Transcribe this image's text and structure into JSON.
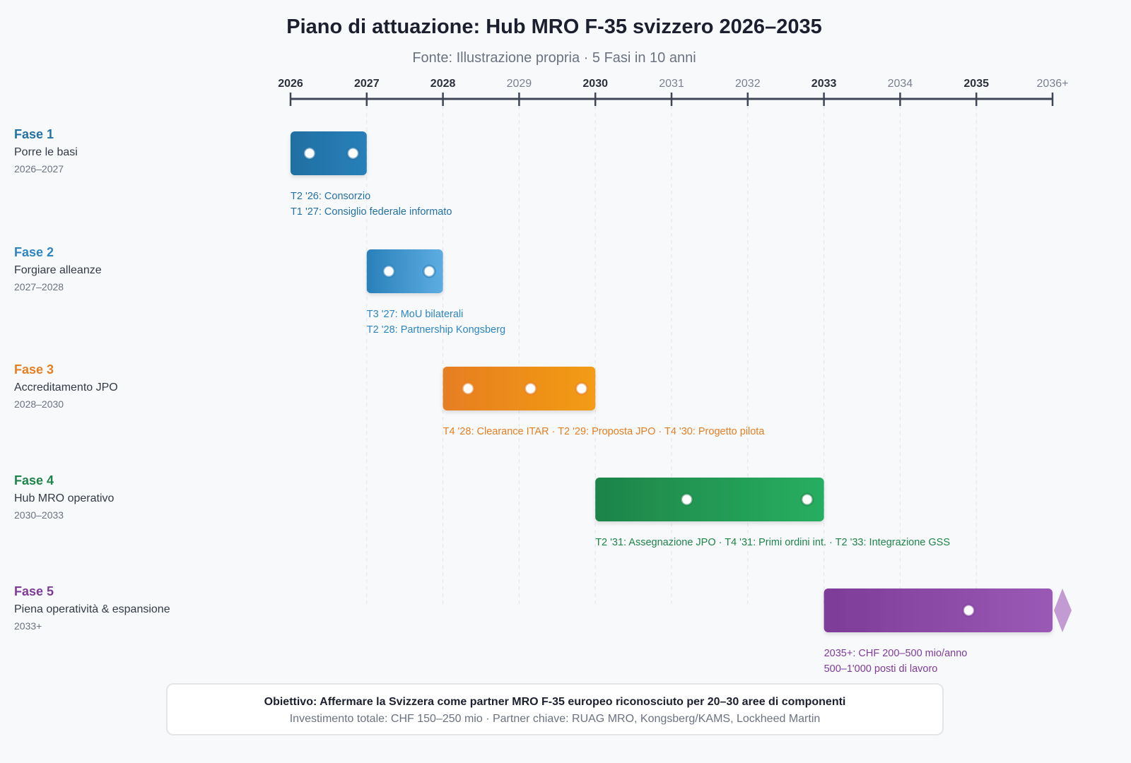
{
  "chart_data": {
    "type": "gantt",
    "title": "Piano di attuazione: Hub MRO F-35 svizzero 2026–2035",
    "subtitle": "Fonte: Illustrazione propria · 5 Fasi in 10 anni",
    "x_ticks": [
      {
        "label": "2026",
        "value": 2026,
        "bold": true
      },
      {
        "label": "2027",
        "value": 2027,
        "bold": true
      },
      {
        "label": "2028",
        "value": 2028,
        "bold": true
      },
      {
        "label": "2029",
        "value": 2029,
        "bold": false
      },
      {
        "label": "2030",
        "value": 2030,
        "bold": true
      },
      {
        "label": "2031",
        "value": 2031,
        "bold": false
      },
      {
        "label": "2032",
        "value": 2032,
        "bold": false
      },
      {
        "label": "2033",
        "value": 2033,
        "bold": true
      },
      {
        "label": "2034",
        "value": 2034,
        "bold": false
      },
      {
        "label": "2035",
        "value": 2035,
        "bold": true
      },
      {
        "label": "2036+",
        "value": 2036,
        "bold": false
      }
    ],
    "xlim": [
      2026,
      2036
    ],
    "grid": true,
    "phases": [
      {
        "name": "Fase 1",
        "desc": "Porre le basi",
        "years": "2026–2027",
        "start": 2026,
        "end": 2027,
        "color_from": "#1f6fa3",
        "color_to": "#2980b9",
        "label_color": "#2471a3",
        "milestones": [
          2026.25,
          2026.82
        ],
        "notes": [
          "T2 '26: Consorzio",
          "T1 '27: Consiglio federale informato"
        ],
        "open_end": false
      },
      {
        "name": "Fase 2",
        "desc": "Forgiare alleanze",
        "years": "2027–2028",
        "start": 2027,
        "end": 2028,
        "color_from": "#2980b9",
        "color_to": "#5dade2",
        "label_color": "#2e86c1",
        "milestones": [
          2027.29,
          2027.82
        ],
        "notes": [
          "T3 '27: MoU bilaterali",
          "T2 '28: Partnership Kongsberg"
        ],
        "open_end": false
      },
      {
        "name": "Fase 3",
        "desc": "Accreditamento JPO",
        "years": "2028–2030",
        "start": 2028,
        "end": 2030,
        "color_from": "#e67e22",
        "color_to": "#f39c12",
        "label_color": "#e67e22",
        "milestones": [
          2028.33,
          2029.15,
          2029.82
        ],
        "notes": [
          "T4 '28: Clearance ITAR · T2 '29: Proposta JPO · T4 '30: Progetto pilota"
        ],
        "open_end": false
      },
      {
        "name": "Fase 4",
        "desc": "Hub MRO operativo",
        "years": "2030–2033",
        "start": 2030,
        "end": 2033,
        "color_from": "#1e8449",
        "color_to": "#27ae60",
        "label_color": "#1e8449",
        "milestones": [
          2031.2,
          2032.78
        ],
        "notes": [
          "T2 '31: Assegnazione JPO · T4 '31: Primi ordini int. · T2 '33: Integrazione GSS"
        ],
        "open_end": false
      },
      {
        "name": "Fase 5",
        "desc": "Piena operatività & espansione",
        "years": "2033+",
        "start": 2033,
        "end": 2036,
        "color_from": "#7d3c98",
        "color_to": "#9b59b6",
        "label_color": "#7d3c98",
        "milestones": [
          2034.9
        ],
        "notes": [
          "2035+: CHF 200–500 mio/anno",
          "500–1'000 posti di lavoro"
        ],
        "open_end": true
      }
    ]
  },
  "footer": {
    "line1": "Obiettivo: Affermare la Svizzera come partner MRO F-35 europeo riconosciuto per 20–30 aree di componenti",
    "line2": "Investimento totale: CHF 150–250 mio · Partner chiave: RUAG MRO, Kongsberg/KAMS, Lockheed Martin"
  }
}
